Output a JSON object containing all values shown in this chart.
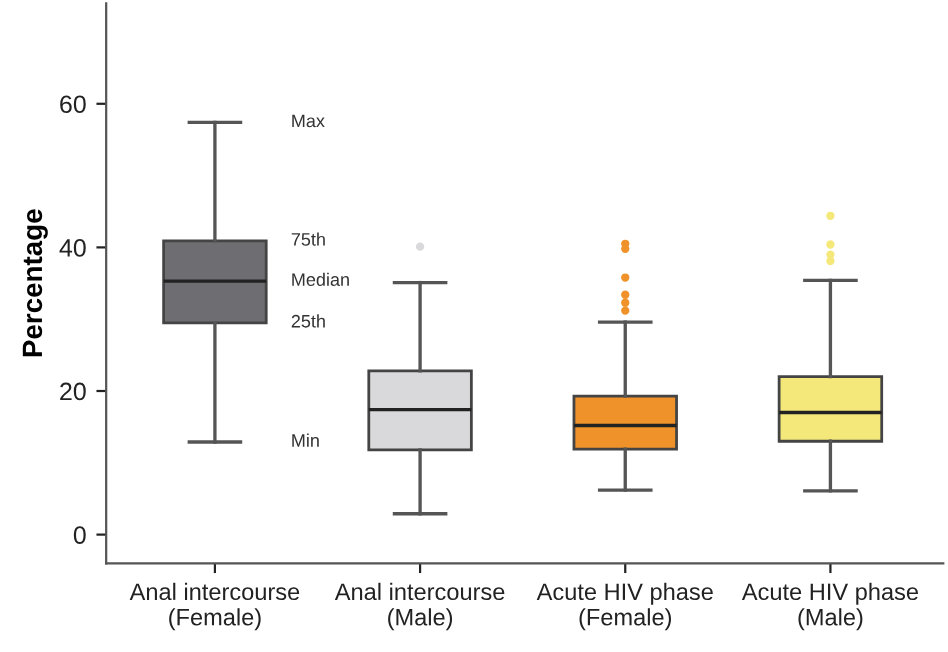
{
  "chart_data": {
    "type": "box",
    "ylabel": "Percentage",
    "categories": [
      "Anal intercourse\n(Female)",
      "Anal intercourse\n(Male)",
      "Acute HIV phase\n(Female)",
      "Acute HIV phase\n(Male)"
    ],
    "colors": [
      "#6e6e72",
      "#d9d9db",
      "#f0922a",
      "#f5e87a"
    ],
    "boxes": [
      {
        "low": 12.9,
        "q1": 29.5,
        "median": 35.3,
        "q3": 40.9,
        "high": 57.4
      },
      {
        "low": 2.9,
        "q1": 11.8,
        "median": 17.4,
        "q3": 22.8,
        "high": 35.1,
        "outliers": [
          40.1
        ]
      },
      {
        "low": 6.2,
        "q1": 11.9,
        "median": 15.2,
        "q3": 19.3,
        "high": 29.6,
        "outliers": [
          31.2,
          32.3,
          33.4,
          35.8,
          39.8,
          40.5
        ]
      },
      {
        "low": 6.1,
        "q1": 13.0,
        "median": 17.0,
        "q3": 22.0,
        "high": 35.4,
        "outliers": [
          38.1,
          39.0,
          40.4,
          44.4
        ]
      }
    ],
    "ylim": [
      -4,
      74
    ],
    "yticks": [
      0,
      20,
      40,
      60
    ],
    "grid": false,
    "annotations": [
      "Max",
      "75th",
      "Median",
      "25th",
      "Min"
    ]
  }
}
